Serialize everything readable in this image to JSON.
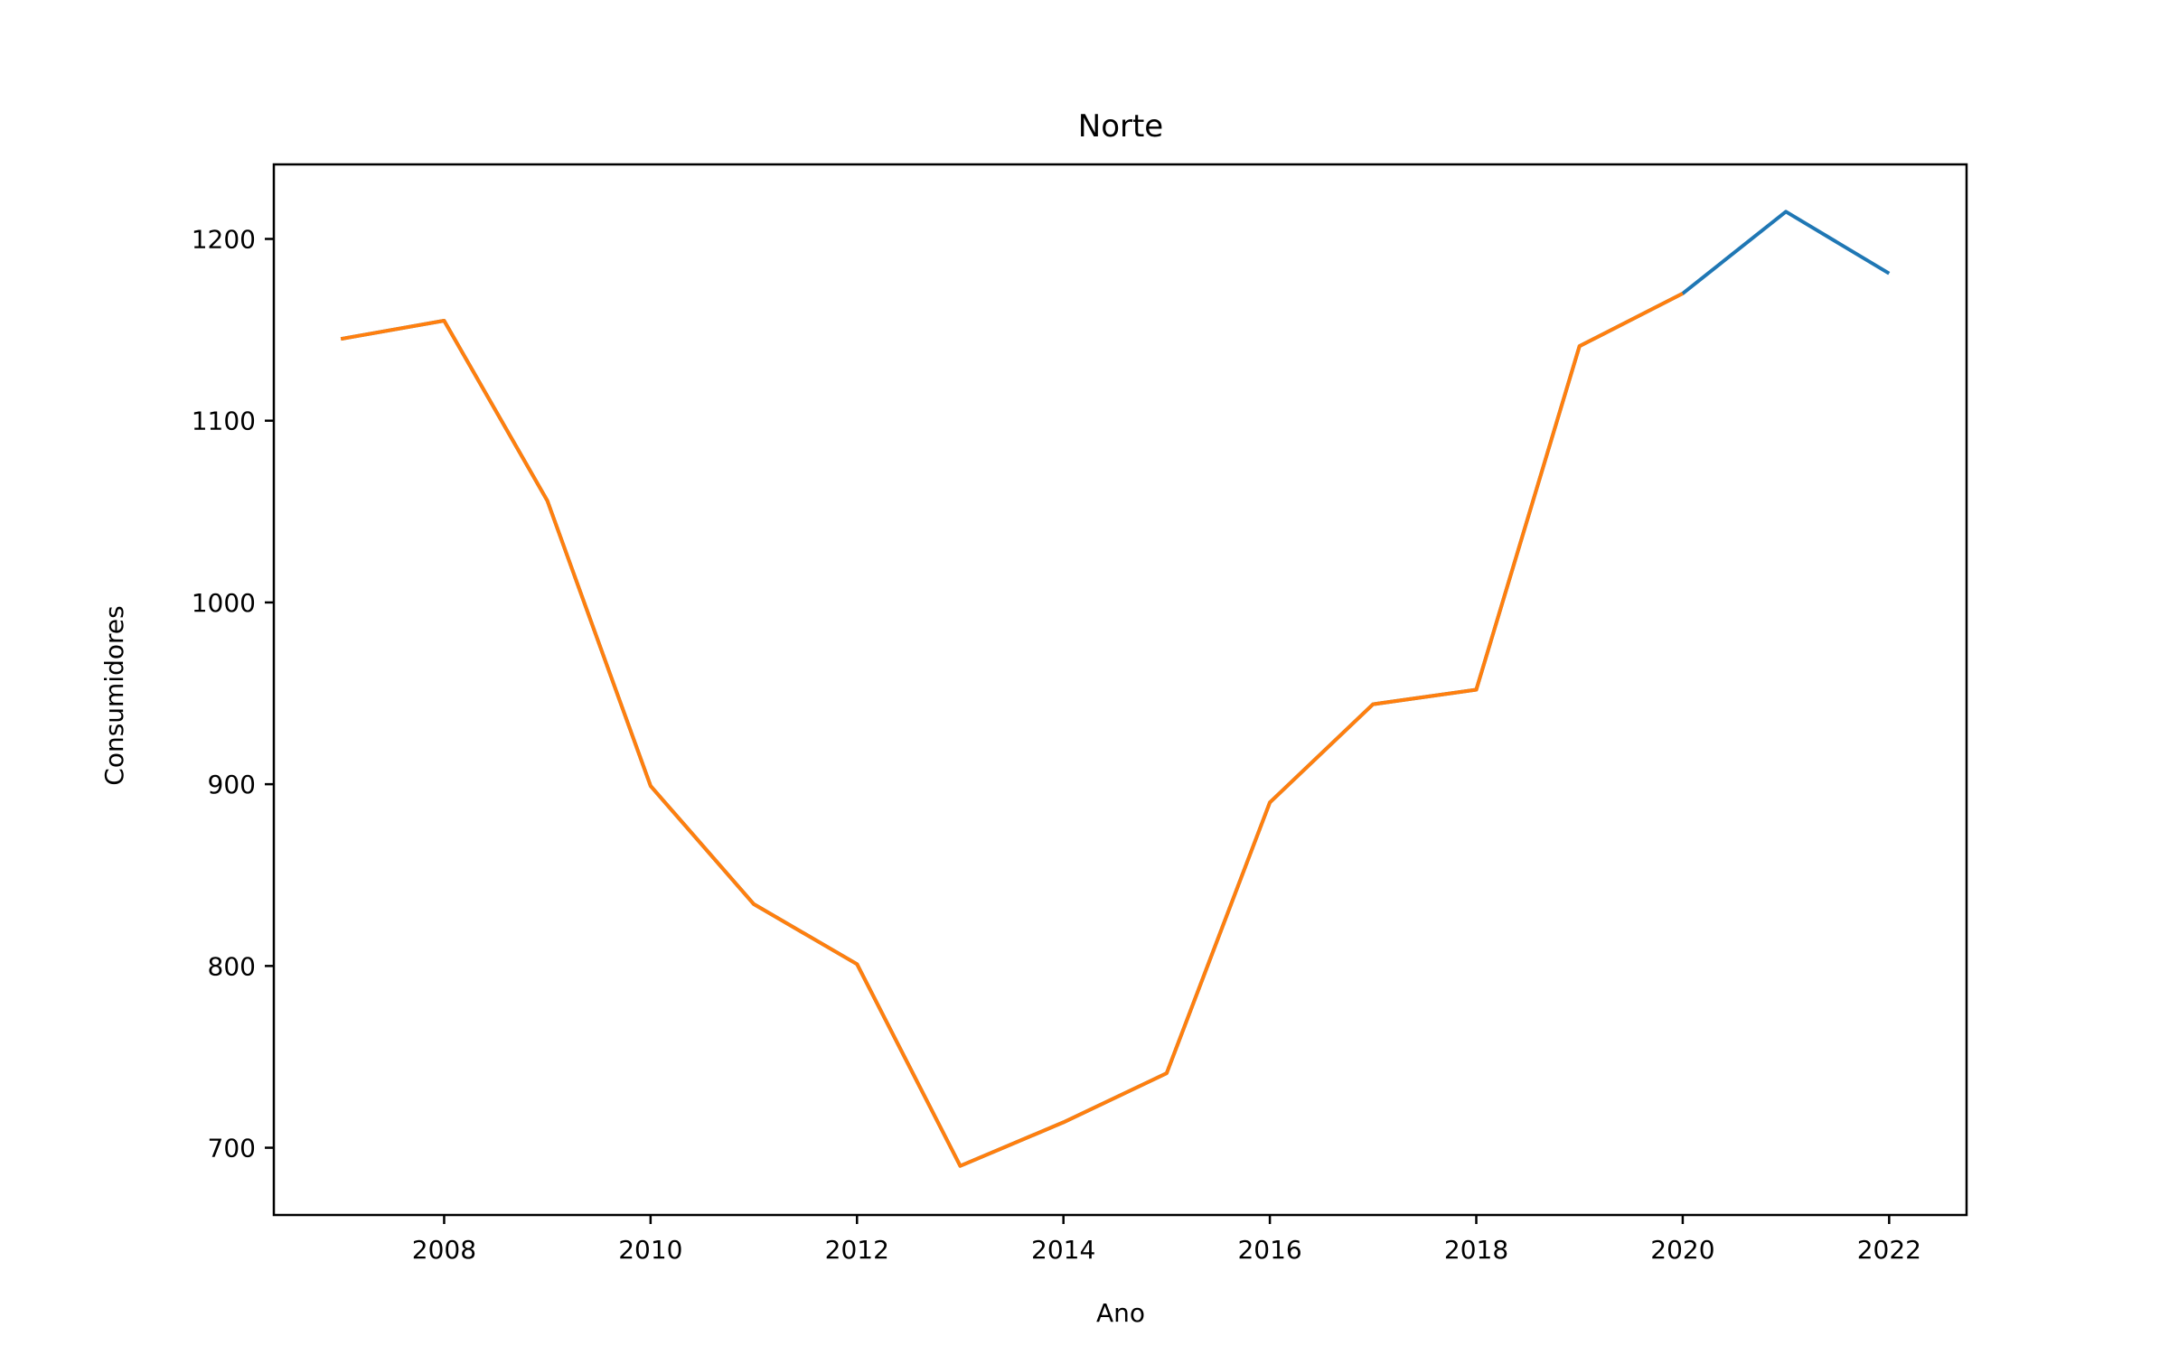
{
  "chart_data": {
    "type": "line",
    "title": "Norte",
    "xlabel": "Ano",
    "ylabel": "Consumidores",
    "xlim": [
      2006.35,
      2022.75
    ],
    "ylim": [
      663,
      1241
    ],
    "xticks": [
      2008,
      2010,
      2012,
      2014,
      2016,
      2018,
      2020,
      2022
    ],
    "yticks": [
      700,
      800,
      900,
      1000,
      1100,
      1200
    ],
    "grid": false,
    "legend": "none",
    "series": [
      {
        "color": "#1f77b4",
        "x": [
          2007,
          2008,
          2009,
          2010,
          2011,
          2012,
          2013,
          2014,
          2015,
          2016,
          2017,
          2018,
          2019,
          2020,
          2021,
          2022
        ],
        "y": [
          1145,
          1155,
          1056,
          899,
          834,
          801,
          690,
          714,
          741,
          890,
          944,
          952,
          1141,
          1170,
          1215,
          1181
        ]
      },
      {
        "color": "#ff7f0e",
        "x": [
          2007,
          2008,
          2009,
          2010,
          2011,
          2012,
          2013,
          2014,
          2015,
          2016,
          2017,
          2018,
          2019,
          2020
        ],
        "y": [
          1145,
          1155,
          1056,
          899,
          834,
          801,
          690,
          714,
          741,
          890,
          944,
          952,
          1141,
          1170
        ]
      }
    ]
  }
}
